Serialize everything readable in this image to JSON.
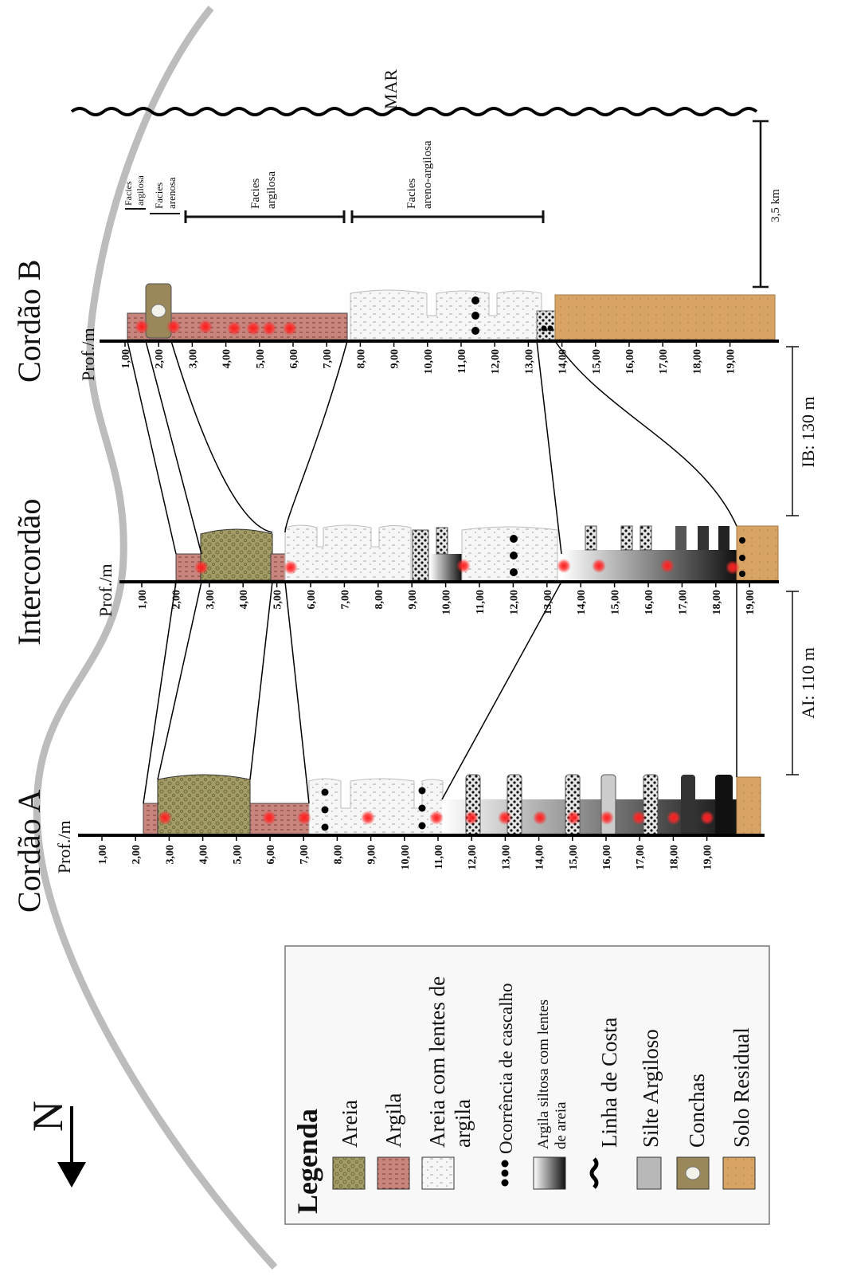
{
  "compass": {
    "letter": "N"
  },
  "sea_label": "MAR",
  "profiles": [
    {
      "id": "cordao-a",
      "title": "Cordão A",
      "depth_label": "Prof./m",
      "ticks": [
        "1,00",
        "2,00",
        "3,00",
        "4,00",
        "5,00",
        "6,00",
        "7,00",
        "8,00",
        "9,00",
        "10,00",
        "11,00",
        "12,00",
        "13,00",
        "14,00",
        "15,00",
        "16,00",
        "17,00",
        "18,00",
        "19,00"
      ]
    },
    {
      "id": "intercordao",
      "title": "Intercordão",
      "depth_label": "Prof./m",
      "ticks": [
        "1,00",
        "2,00",
        "3,00",
        "4,00",
        "5,00",
        "6,00",
        "7,00",
        "8,00",
        "9,00",
        "10,00",
        "11,00",
        "12,00",
        "13,00",
        "14,00",
        "15,00",
        "16,00",
        "17,00",
        "18,00",
        "19,00"
      ]
    },
    {
      "id": "cordao-b",
      "title": "Cordão B",
      "depth_label": "Prof./m",
      "ticks": [
        "1,00",
        "2,00",
        "3,00",
        "4,00",
        "5,00",
        "6,00",
        "7,00",
        "8,00",
        "9,00",
        "10,00",
        "11,00",
        "12,00",
        "13,00",
        "14,00",
        "15,00",
        "16,00",
        "17,00",
        "18,00",
        "19,00"
      ]
    }
  ],
  "distances": {
    "ai": "AI: 110 m",
    "ib": "IB: 130 m",
    "scale": "3,5 km"
  },
  "facies": [
    {
      "line1": "Facies",
      "line2": "argilosa"
    },
    {
      "line1": "Facies",
      "line2": "arenosa"
    },
    {
      "line1": "Facies",
      "line2": "argilosa"
    },
    {
      "line1": "Facies",
      "line2": "areno-argilosa"
    }
  ],
  "legend": {
    "title": "Legenda",
    "items": [
      {
        "label": "Areia"
      },
      {
        "label": "Argila"
      },
      {
        "label": "Areia com lentes de",
        "label2": "argila"
      },
      {
        "label": "Ocorrência de cascalho"
      },
      {
        "label": "Argila siltosa com lentes",
        "label2": "de areia"
      },
      {
        "label": "Linha de Costa"
      },
      {
        "label": "Silte Argiloso"
      },
      {
        "label": "Conchas"
      },
      {
        "label": "Solo Residual"
      }
    ]
  },
  "colors": {
    "areia": "#a39c66",
    "argila": "#c7857d",
    "solo_residual": "#d8a466",
    "silte": "#b8b8b8",
    "coast": "#bcbcbc",
    "sample": "#ff1a1a"
  }
}
